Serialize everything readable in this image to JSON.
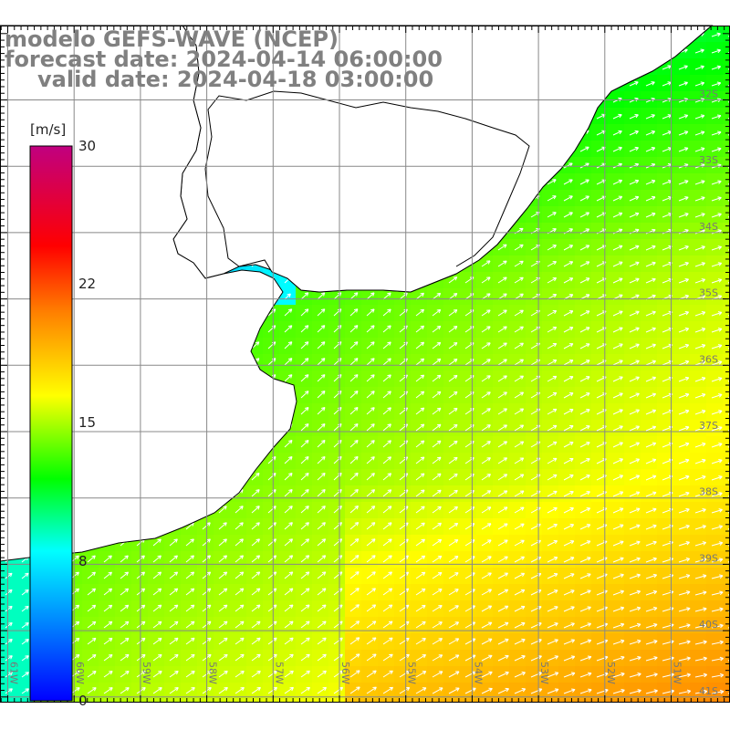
{
  "title": {
    "line1": "modelo GEFS-WAVE (NCEP)",
    "line2": "forecast date: 2024-04-14 06:00:00",
    "line3": "valid date: 2024-04-18 03:00:00"
  },
  "colorbar": {
    "unit": "[m/s]",
    "ticks": [
      "30",
      "22",
      "15",
      "8",
      "0"
    ],
    "stops": [
      "#0000ff",
      "#00ffff",
      "#00ff00",
      "#ffff00",
      "#ff8000",
      "#ff0000",
      "#c00080"
    ]
  },
  "axes": {
    "lon_labels": [
      "61W",
      "60W",
      "59W",
      "58W",
      "57W",
      "56W",
      "55W",
      "54W",
      "53W",
      "52W",
      "51W"
    ],
    "lat_labels": [
      "32S",
      "33S",
      "34S",
      "35S",
      "36S",
      "37S",
      "38S",
      "39S",
      "40S",
      "41S"
    ]
  },
  "field": {
    "variable": "wind speed and direction",
    "range": [
      0,
      30
    ]
  }
}
